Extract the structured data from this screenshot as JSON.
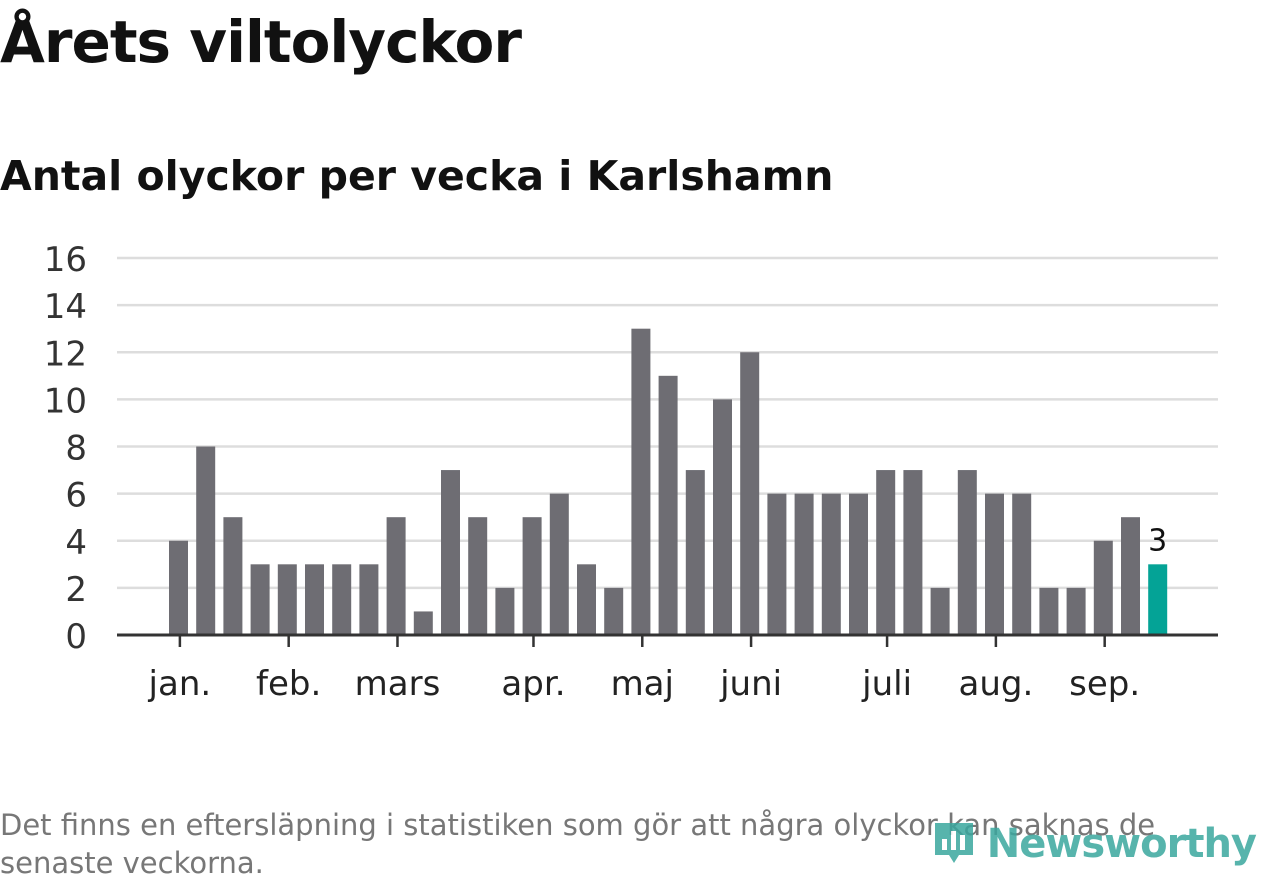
{
  "colors": {
    "bar": "#6e6d73",
    "highlight": "#04a396",
    "grid": "#dddddd",
    "axis": "#333333",
    "logo": "#3aa79e"
  },
  "footnote": "Det finns en eftersläpning i statistiken som gör att några olyckor kan saknas de senaste veckorna.",
  "logo": {
    "icon": "newsworthy-chart-icon",
    "text": "Newsworthy"
  },
  "chart_data": {
    "type": "bar",
    "title": "Årets viltolyckor",
    "subtitle": "Antal olyckor per vecka i Karlshamn",
    "xlabel": "",
    "ylabel": "",
    "ylim": [
      0,
      16
    ],
    "yticks": [
      0,
      2,
      4,
      6,
      8,
      10,
      12,
      14,
      16
    ],
    "grid": true,
    "values": [
      4,
      8,
      5,
      3,
      3,
      3,
      3,
      3,
      5,
      1,
      7,
      5,
      2,
      5,
      6,
      3,
      2,
      13,
      11,
      7,
      10,
      12,
      6,
      6,
      6,
      6,
      7,
      7,
      2,
      7,
      6,
      6,
      2,
      2,
      4,
      5,
      3
    ],
    "highlight_index": 36,
    "data_labels": [
      {
        "index": 36,
        "text": "3"
      }
    ],
    "month_ticks": [
      {
        "label": "jan.",
        "pos": 0.4
      },
      {
        "label": "feb.",
        "pos": 4.4
      },
      {
        "label": "mars",
        "pos": 8.4
      },
      {
        "label": "apr.",
        "pos": 13.4
      },
      {
        "label": "maj",
        "pos": 17.4
      },
      {
        "label": "juni",
        "pos": 21.4
      },
      {
        "label": "juli",
        "pos": 26.4
      },
      {
        "label": "aug.",
        "pos": 30.4
      },
      {
        "label": "sep.",
        "pos": 34.4
      }
    ]
  }
}
